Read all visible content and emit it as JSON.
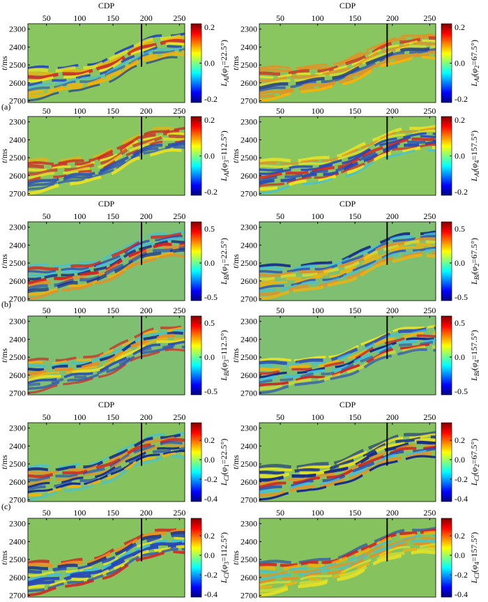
{
  "group_labels": [
    "(a)",
    "(b)",
    "(c)"
  ],
  "chart_data": [
    {
      "type": "heatmap",
      "xlabel": "CDP",
      "xlim": [
        22,
        258
      ],
      "xticks": [
        50,
        100,
        150,
        200,
        250
      ],
      "ylabel": [
        "t",
        "/ms"
      ],
      "ylim": [
        2270,
        2710
      ],
      "yreversed": true,
      "yticks": [
        2300,
        2400,
        2500,
        2600,
        2700
      ],
      "colormap": "jet",
      "background": "#8ac660",
      "clim": [
        -0.22,
        0.22
      ],
      "cticks": [
        -0.2,
        {
          "value": 0,
          "label": "0.0"
        },
        0.2
      ],
      "clabel": [
        "L",
        "AI",
        "(",
        "φ",
        "1",
        "=22.5°)"
      ],
      "marker": {
        "x": 193,
        "t": 2510
      }
    },
    {
      "type": "heatmap",
      "xlabel": "CDP",
      "xlim": [
        22,
        258
      ],
      "xticks": [
        50,
        100,
        150,
        200,
        250
      ],
      "ylabel": [
        "t",
        "/ms"
      ],
      "ylim": [
        2270,
        2710
      ],
      "yreversed": true,
      "yticks": [
        2300,
        2400,
        2500,
        2600,
        2700
      ],
      "colormap": "jet",
      "background": "#8ac660",
      "clim": [
        -0.22,
        0.22
      ],
      "cticks": [
        -0.2,
        {
          "value": 0,
          "label": "0.0"
        },
        0.2
      ],
      "clabel": [
        "L",
        "AI",
        "(",
        "φ",
        "2",
        "=67.5°)"
      ],
      "marker": {
        "x": 193,
        "t": 2510
      }
    },
    {
      "type": "heatmap",
      "xlim": [
        22,
        258
      ],
      "xticks": [
        50,
        100,
        150,
        200,
        250
      ],
      "ylabel": [
        "t",
        "/ms"
      ],
      "ylim": [
        2270,
        2710
      ],
      "yreversed": true,
      "yticks": [
        2300,
        2400,
        2500,
        2600,
        2700
      ],
      "colormap": "jet",
      "background": "#8ac660",
      "clim": [
        -0.22,
        0.22
      ],
      "cticks": [
        -0.2,
        {
          "value": 0,
          "label": "0.0"
        },
        0.2
      ],
      "clabel": [
        "L",
        "AI",
        "(",
        "φ",
        "3",
        "=112.5°)"
      ],
      "marker": {
        "x": 193,
        "t": 2510
      }
    },
    {
      "type": "heatmap",
      "xlim": [
        22,
        258
      ],
      "xticks": [
        50,
        100,
        150,
        200,
        250
      ],
      "ylabel": [
        "t",
        "/ms"
      ],
      "ylim": [
        2270,
        2710
      ],
      "yreversed": true,
      "yticks": [
        2300,
        2400,
        2500,
        2600,
        2700
      ],
      "colormap": "jet",
      "background": "#8ac660",
      "clim": [
        -0.22,
        0.22
      ],
      "cticks": [
        -0.2,
        {
          "value": 0,
          "label": "0.0"
        },
        0.2
      ],
      "clabel": [
        "L",
        "AI",
        "(",
        "φ",
        "4",
        "=157.5°)"
      ],
      "marker": {
        "x": 193,
        "t": 2510
      }
    },
    {
      "type": "heatmap",
      "xlabel": "CDP",
      "xlim": [
        22,
        258
      ],
      "xticks": [
        50,
        100,
        150,
        200,
        250
      ],
      "ylabel": [
        "t",
        "/ms"
      ],
      "ylim": [
        2270,
        2710
      ],
      "yreversed": true,
      "yticks": [
        2300,
        2400,
        2500,
        2600,
        2700
      ],
      "colormap": "jet",
      "background": "#7fbf72",
      "clim": [
        -0.55,
        0.6
      ],
      "cticks": [
        -0.5,
        {
          "value": 0,
          "label": "0.0"
        },
        0.5
      ],
      "clabel": [
        "L",
        "BI",
        "(",
        "φ",
        "1",
        "=22.5°)"
      ],
      "marker": {
        "x": 193,
        "t": 2510
      }
    },
    {
      "type": "heatmap",
      "xlabel": "CDP",
      "xlim": [
        22,
        258
      ],
      "xticks": [
        50,
        100,
        150,
        200,
        250
      ],
      "ylabel": [
        "t",
        "/ms"
      ],
      "ylim": [
        2270,
        2710
      ],
      "yreversed": true,
      "yticks": [
        2300,
        2400,
        2500,
        2600,
        2700
      ],
      "colormap": "jet",
      "background": "#7fbf72",
      "clim": [
        -0.55,
        0.6
      ],
      "cticks": [
        -0.5,
        {
          "value": 0,
          "label": "0.0"
        },
        0.5
      ],
      "clabel": [
        "L",
        "BI",
        "(",
        "φ",
        "2",
        "=67.5°)"
      ],
      "marker": {
        "x": 193,
        "t": 2510
      }
    },
    {
      "type": "heatmap",
      "xlim": [
        22,
        258
      ],
      "xticks": [
        50,
        100,
        150,
        200,
        250
      ],
      "ylabel": [
        "t",
        "/ms"
      ],
      "ylim": [
        2270,
        2710
      ],
      "yreversed": true,
      "yticks": [
        2300,
        2400,
        2500,
        2600,
        2700
      ],
      "colormap": "jet",
      "background": "#7fbf72",
      "clim": [
        -0.55,
        0.6
      ],
      "cticks": [
        -0.5,
        {
          "value": 0,
          "label": "0.0"
        },
        0.5
      ],
      "clabel": [
        "L",
        "BI",
        "(",
        "φ",
        "3",
        "=112.5°)"
      ],
      "marker": {
        "x": 193,
        "t": 2510
      }
    },
    {
      "type": "heatmap",
      "xlim": [
        22,
        258
      ],
      "xticks": [
        50,
        100,
        150,
        200,
        250
      ],
      "ylabel": [
        "t",
        "/ms"
      ],
      "ylim": [
        2270,
        2710
      ],
      "yreversed": true,
      "yticks": [
        2300,
        2400,
        2500,
        2600,
        2700
      ],
      "colormap": "jet",
      "background": "#7fbf72",
      "clim": [
        -0.55,
        0.6
      ],
      "cticks": [
        -0.5,
        {
          "value": 0,
          "label": "0.0"
        },
        0.5
      ],
      "clabel": [
        "L",
        "BI",
        "(",
        "φ",
        "4",
        "=157.5°)"
      ],
      "marker": {
        "x": 193,
        "t": 2510
      }
    },
    {
      "type": "heatmap",
      "xlabel": "CDP",
      "xlim": [
        22,
        258
      ],
      "xticks": [
        50,
        100,
        150,
        200,
        250
      ],
      "ylabel": [
        "t",
        "/ms"
      ],
      "ylim": [
        2270,
        2710
      ],
      "yreversed": true,
      "yticks": [
        2300,
        2400,
        2500,
        2600,
        2700
      ],
      "colormap": "jet",
      "background": "#86c35f",
      "clim": [
        -0.43,
        0.38
      ],
      "cticks": [
        -0.4,
        -0.2,
        {
          "value": 0,
          "label": "0.0"
        },
        0.2
      ],
      "clabel": [
        "L",
        "CI",
        "(",
        "φ",
        "1",
        "=22.5°)"
      ],
      "marker": {
        "x": 193,
        "t": 2510
      }
    },
    {
      "type": "heatmap",
      "xlabel": "CDP",
      "xlim": [
        22,
        258
      ],
      "xticks": [
        50,
        100,
        150,
        200,
        250
      ],
      "ylabel": [
        "t",
        "/ms"
      ],
      "ylim": [
        2270,
        2710
      ],
      "yreversed": true,
      "yticks": [
        2300,
        2400,
        2500,
        2600,
        2700
      ],
      "colormap": "jet",
      "background": "#86c35f",
      "clim": [
        -0.43,
        0.38
      ],
      "cticks": [
        -0.4,
        -0.2,
        {
          "value": 0,
          "label": "0.0"
        },
        0.2
      ],
      "clabel": [
        "L",
        "CI",
        "(",
        "φ",
        "2",
        "=67.5°)"
      ],
      "marker": {
        "x": 193,
        "t": 2510
      }
    },
    {
      "type": "heatmap",
      "xlim": [
        22,
        258
      ],
      "xticks": [
        50,
        100,
        150,
        200,
        250
      ],
      "ylabel": [
        "t",
        "/ms"
      ],
      "ylim": [
        2270,
        2710
      ],
      "yreversed": true,
      "yticks": [
        2300,
        2400,
        2500,
        2600,
        2700
      ],
      "colormap": "jet",
      "background": "#86c35f",
      "clim": [
        -0.43,
        0.38
      ],
      "cticks": [
        -0.4,
        -0.2,
        {
          "value": 0,
          "label": "0.0"
        },
        0.2
      ],
      "clabel": [
        "L",
        "CI",
        "(",
        "φ",
        "3",
        "=112.5°)"
      ],
      "marker": {
        "x": 193,
        "t": 2510
      }
    },
    {
      "type": "heatmap",
      "xlim": [
        22,
        258
      ],
      "xticks": [
        50,
        100,
        150,
        200,
        250
      ],
      "ylabel": [
        "t",
        "/ms"
      ],
      "ylim": [
        2270,
        2710
      ],
      "yreversed": true,
      "yticks": [
        2300,
        2400,
        2500,
        2600,
        2700
      ],
      "colormap": "jet",
      "background": "#86c35f",
      "clim": [
        -0.43,
        0.38
      ],
      "cticks": [
        -0.4,
        -0.2,
        {
          "value": 0,
          "label": "0.0"
        },
        0.2
      ],
      "clabel": [
        "L",
        "CI",
        "(",
        "φ",
        "4",
        "=157.5°)"
      ],
      "marker": {
        "x": 193,
        "t": 2510
      }
    }
  ]
}
